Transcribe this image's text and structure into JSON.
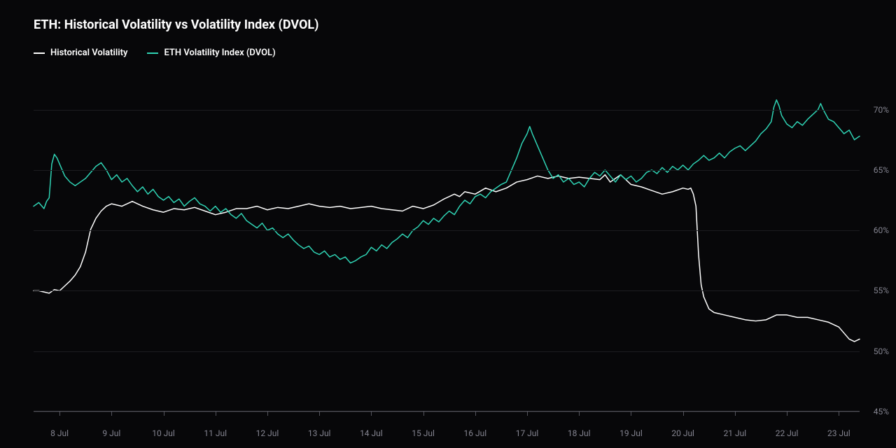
{
  "chart": {
    "type": "line",
    "title": "ETH: Historical Volatility vs Volatility Index (DVOL)",
    "title_fontsize": 18,
    "title_color": "#ffffff",
    "background_color": "#070709",
    "grid_color": "#1c1c20",
    "axis_line_color": "#54545c",
    "axis_label_color": "#848490",
    "axis_label_fontsize": 12,
    "y": {
      "min": 45,
      "max": 72,
      "ticks": [
        45,
        50,
        55,
        60,
        65,
        70
      ],
      "tick_labels": [
        "45%",
        "50%",
        "55%",
        "60%",
        "65%",
        "70%"
      ]
    },
    "x": {
      "min": 7.5,
      "max": 23.4,
      "ticks": [
        8,
        9,
        10,
        11,
        12,
        13,
        14,
        15,
        16,
        17,
        18,
        19,
        20,
        21,
        22,
        23
      ],
      "tick_labels": [
        "8 Jul",
        "9 Jul",
        "10 Jul",
        "11 Jul",
        "12 Jul",
        "13 Jul",
        "14 Jul",
        "15 Jul",
        "16 Jul",
        "17 Jul",
        "18 Jul",
        "19 Jul",
        "20 Jul",
        "21 Jul",
        "22 Jul",
        "23 Jul"
      ]
    },
    "legend": {
      "items": [
        {
          "label": "Historical Volatility",
          "color": "#ffffff"
        },
        {
          "label": "ETH Volatility Index (DVOL)",
          "color": "#2fd3b4"
        }
      ]
    },
    "series": [
      {
        "name": "Historical Volatility",
        "color": "#ffffff",
        "line_width": 1.5,
        "data": [
          [
            7.5,
            55.0
          ],
          [
            7.6,
            55.0
          ],
          [
            7.8,
            54.8
          ],
          [
            7.9,
            55.1
          ],
          [
            8.0,
            55.0
          ],
          [
            8.1,
            55.4
          ],
          [
            8.2,
            55.8
          ],
          [
            8.3,
            56.3
          ],
          [
            8.4,
            57.0
          ],
          [
            8.5,
            58.2
          ],
          [
            8.6,
            60.1
          ],
          [
            8.7,
            61.0
          ],
          [
            8.8,
            61.6
          ],
          [
            8.9,
            62.0
          ],
          [
            9.0,
            62.2
          ],
          [
            9.2,
            62.0
          ],
          [
            9.4,
            62.4
          ],
          [
            9.6,
            62.0
          ],
          [
            9.8,
            61.7
          ],
          [
            10.0,
            61.5
          ],
          [
            10.2,
            61.8
          ],
          [
            10.4,
            61.7
          ],
          [
            10.6,
            61.9
          ],
          [
            10.8,
            61.6
          ],
          [
            11.0,
            61.3
          ],
          [
            11.2,
            61.5
          ],
          [
            11.4,
            61.8
          ],
          [
            11.6,
            61.8
          ],
          [
            11.8,
            62.0
          ],
          [
            12.0,
            61.7
          ],
          [
            12.2,
            61.9
          ],
          [
            12.4,
            61.8
          ],
          [
            12.6,
            62.0
          ],
          [
            12.8,
            62.2
          ],
          [
            13.0,
            62.0
          ],
          [
            13.2,
            61.9
          ],
          [
            13.4,
            62.0
          ],
          [
            13.6,
            61.8
          ],
          [
            13.8,
            61.9
          ],
          [
            14.0,
            62.0
          ],
          [
            14.2,
            61.8
          ],
          [
            14.4,
            61.7
          ],
          [
            14.6,
            61.6
          ],
          [
            14.8,
            62.0
          ],
          [
            15.0,
            61.8
          ],
          [
            15.2,
            62.1
          ],
          [
            15.4,
            62.6
          ],
          [
            15.6,
            63.0
          ],
          [
            15.7,
            62.8
          ],
          [
            15.8,
            63.2
          ],
          [
            16.0,
            63.0
          ],
          [
            16.2,
            63.5
          ],
          [
            16.4,
            63.2
          ],
          [
            16.6,
            63.5
          ],
          [
            16.8,
            64.0
          ],
          [
            17.0,
            64.2
          ],
          [
            17.2,
            64.5
          ],
          [
            17.4,
            64.3
          ],
          [
            17.6,
            64.5
          ],
          [
            17.8,
            64.3
          ],
          [
            18.0,
            64.4
          ],
          [
            18.2,
            64.3
          ],
          [
            18.4,
            64.2
          ],
          [
            18.5,
            64.6
          ],
          [
            18.6,
            64.0
          ],
          [
            18.8,
            64.6
          ],
          [
            19.0,
            63.8
          ],
          [
            19.2,
            63.6
          ],
          [
            19.4,
            63.3
          ],
          [
            19.6,
            63.0
          ],
          [
            19.8,
            63.2
          ],
          [
            20.0,
            63.5
          ],
          [
            20.1,
            63.4
          ],
          [
            20.15,
            63.5
          ],
          [
            20.2,
            63.0
          ],
          [
            20.25,
            62.0
          ],
          [
            20.3,
            58.0
          ],
          [
            20.35,
            55.5
          ],
          [
            20.4,
            54.5
          ],
          [
            20.5,
            53.5
          ],
          [
            20.6,
            53.2
          ],
          [
            20.8,
            53.0
          ],
          [
            21.0,
            52.8
          ],
          [
            21.2,
            52.6
          ],
          [
            21.4,
            52.5
          ],
          [
            21.6,
            52.6
          ],
          [
            21.8,
            53.0
          ],
          [
            22.0,
            53.0
          ],
          [
            22.2,
            52.8
          ],
          [
            22.4,
            52.8
          ],
          [
            22.6,
            52.6
          ],
          [
            22.8,
            52.4
          ],
          [
            23.0,
            52.0
          ],
          [
            23.1,
            51.5
          ],
          [
            23.2,
            51.0
          ],
          [
            23.3,
            50.8
          ],
          [
            23.4,
            51.0
          ]
        ]
      },
      {
        "name": "ETH Volatility Index (DVOL)",
        "color": "#2fd3b4",
        "line_width": 1.5,
        "data": [
          [
            7.5,
            62.0
          ],
          [
            7.6,
            62.3
          ],
          [
            7.7,
            61.8
          ],
          [
            7.75,
            62.4
          ],
          [
            7.8,
            62.7
          ],
          [
            7.85,
            65.5
          ],
          [
            7.9,
            66.3
          ],
          [
            7.95,
            66.0
          ],
          [
            8.0,
            65.5
          ],
          [
            8.1,
            64.5
          ],
          [
            8.2,
            64.0
          ],
          [
            8.3,
            63.7
          ],
          [
            8.4,
            64.0
          ],
          [
            8.5,
            64.3
          ],
          [
            8.6,
            64.8
          ],
          [
            8.7,
            65.3
          ],
          [
            8.8,
            65.6
          ],
          [
            8.9,
            65.0
          ],
          [
            9.0,
            64.2
          ],
          [
            9.1,
            64.6
          ],
          [
            9.2,
            64.0
          ],
          [
            9.3,
            64.3
          ],
          [
            9.4,
            63.7
          ],
          [
            9.5,
            63.2
          ],
          [
            9.6,
            63.6
          ],
          [
            9.7,
            63.0
          ],
          [
            9.8,
            63.4
          ],
          [
            9.9,
            62.8
          ],
          [
            10.0,
            62.5
          ],
          [
            10.1,
            62.8
          ],
          [
            10.2,
            62.3
          ],
          [
            10.3,
            62.6
          ],
          [
            10.4,
            62.0
          ],
          [
            10.5,
            62.4
          ],
          [
            10.6,
            62.7
          ],
          [
            10.7,
            62.2
          ],
          [
            10.8,
            62.0
          ],
          [
            10.9,
            61.6
          ],
          [
            11.0,
            62.0
          ],
          [
            11.1,
            61.5
          ],
          [
            11.2,
            61.8
          ],
          [
            11.3,
            61.3
          ],
          [
            11.4,
            61.0
          ],
          [
            11.5,
            61.4
          ],
          [
            11.6,
            60.8
          ],
          [
            11.7,
            60.5
          ],
          [
            11.8,
            60.2
          ],
          [
            11.9,
            60.6
          ],
          [
            12.0,
            60.0
          ],
          [
            12.1,
            60.2
          ],
          [
            12.2,
            59.7
          ],
          [
            12.3,
            59.4
          ],
          [
            12.4,
            59.7
          ],
          [
            12.5,
            59.2
          ],
          [
            12.6,
            58.8
          ],
          [
            12.7,
            58.5
          ],
          [
            12.8,
            58.7
          ],
          [
            12.9,
            58.2
          ],
          [
            13.0,
            58.0
          ],
          [
            13.1,
            58.3
          ],
          [
            13.2,
            57.8
          ],
          [
            13.3,
            58.0
          ],
          [
            13.4,
            57.6
          ],
          [
            13.5,
            57.8
          ],
          [
            13.6,
            57.3
          ],
          [
            13.7,
            57.5
          ],
          [
            13.8,
            57.8
          ],
          [
            13.9,
            58.0
          ],
          [
            14.0,
            58.6
          ],
          [
            14.1,
            58.3
          ],
          [
            14.2,
            58.8
          ],
          [
            14.3,
            58.5
          ],
          [
            14.4,
            59.0
          ],
          [
            14.5,
            59.3
          ],
          [
            14.6,
            59.7
          ],
          [
            14.7,
            59.4
          ],
          [
            14.8,
            60.0
          ],
          [
            14.9,
            60.3
          ],
          [
            15.0,
            60.8
          ],
          [
            15.1,
            60.5
          ],
          [
            15.2,
            61.0
          ],
          [
            15.3,
            60.7
          ],
          [
            15.4,
            61.2
          ],
          [
            15.5,
            61.6
          ],
          [
            15.6,
            61.3
          ],
          [
            15.7,
            62.0
          ],
          [
            15.8,
            62.5
          ],
          [
            15.9,
            62.2
          ],
          [
            16.0,
            62.8
          ],
          [
            16.1,
            63.0
          ],
          [
            16.2,
            62.7
          ],
          [
            16.3,
            63.2
          ],
          [
            16.4,
            63.5
          ],
          [
            16.5,
            63.8
          ],
          [
            16.6,
            64.0
          ],
          [
            16.7,
            65.0
          ],
          [
            16.8,
            66.0
          ],
          [
            16.9,
            67.2
          ],
          [
            17.0,
            68.0
          ],
          [
            17.05,
            68.6
          ],
          [
            17.1,
            68.0
          ],
          [
            17.2,
            67.0
          ],
          [
            17.3,
            66.0
          ],
          [
            17.4,
            65.0
          ],
          [
            17.5,
            64.3
          ],
          [
            17.6,
            64.6
          ],
          [
            17.7,
            64.0
          ],
          [
            17.8,
            64.3
          ],
          [
            17.9,
            63.8
          ],
          [
            18.0,
            64.0
          ],
          [
            18.1,
            63.6
          ],
          [
            18.2,
            64.3
          ],
          [
            18.3,
            64.8
          ],
          [
            18.4,
            64.5
          ],
          [
            18.5,
            65.0
          ],
          [
            18.6,
            64.5
          ],
          [
            18.7,
            64.0
          ],
          [
            18.8,
            64.6
          ],
          [
            18.9,
            64.2
          ],
          [
            19.0,
            64.5
          ],
          [
            19.1,
            64.0
          ],
          [
            19.2,
            64.3
          ],
          [
            19.3,
            64.8
          ],
          [
            19.4,
            65.0
          ],
          [
            19.5,
            64.7
          ],
          [
            19.6,
            65.2
          ],
          [
            19.7,
            64.8
          ],
          [
            19.8,
            65.3
          ],
          [
            19.9,
            65.0
          ],
          [
            20.0,
            65.4
          ],
          [
            20.1,
            65.0
          ],
          [
            20.2,
            65.5
          ],
          [
            20.3,
            65.8
          ],
          [
            20.4,
            66.2
          ],
          [
            20.5,
            65.8
          ],
          [
            20.6,
            66.0
          ],
          [
            20.7,
            66.4
          ],
          [
            20.8,
            66.0
          ],
          [
            20.9,
            66.5
          ],
          [
            21.0,
            66.8
          ],
          [
            21.1,
            67.0
          ],
          [
            21.2,
            66.6
          ],
          [
            21.3,
            67.0
          ],
          [
            21.4,
            67.4
          ],
          [
            21.5,
            68.0
          ],
          [
            21.6,
            68.4
          ],
          [
            21.7,
            69.0
          ],
          [
            21.75,
            70.2
          ],
          [
            21.8,
            70.8
          ],
          [
            21.85,
            70.3
          ],
          [
            21.9,
            69.5
          ],
          [
            22.0,
            68.8
          ],
          [
            22.1,
            68.5
          ],
          [
            22.2,
            69.0
          ],
          [
            22.3,
            68.7
          ],
          [
            22.4,
            69.2
          ],
          [
            22.5,
            69.6
          ],
          [
            22.6,
            70.0
          ],
          [
            22.65,
            70.5
          ],
          [
            22.7,
            70.0
          ],
          [
            22.8,
            69.2
          ],
          [
            22.9,
            69.0
          ],
          [
            23.0,
            68.5
          ],
          [
            23.1,
            68.0
          ],
          [
            23.2,
            68.3
          ],
          [
            23.3,
            67.5
          ],
          [
            23.4,
            67.8
          ]
        ]
      }
    ]
  }
}
